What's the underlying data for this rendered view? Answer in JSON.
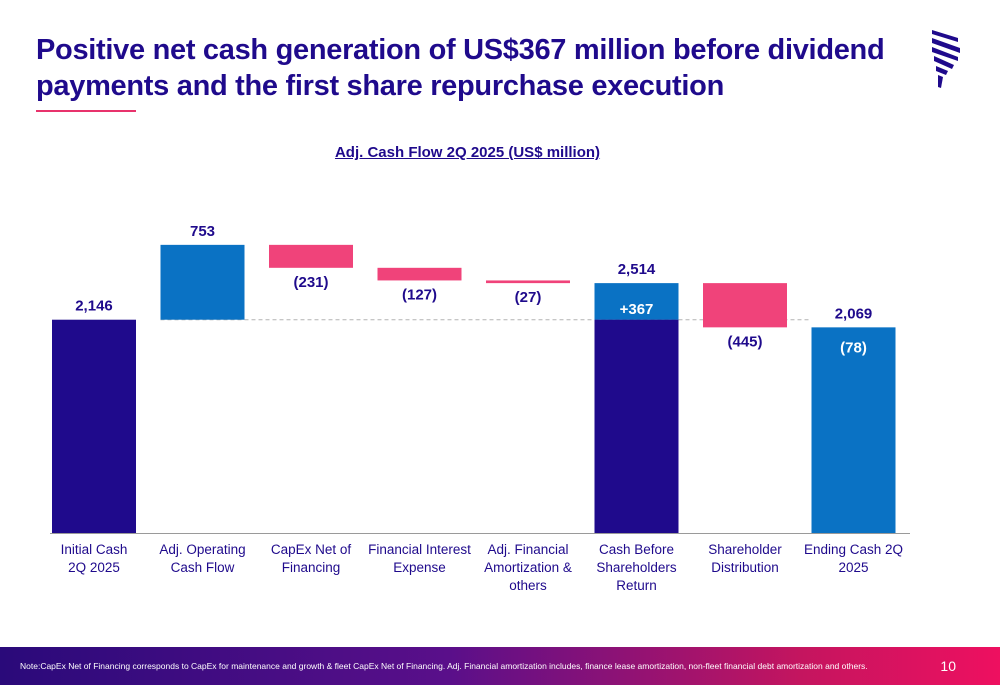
{
  "header": {
    "title": "Positive net cash generation of US$367 million before dividend payments and the first share repurchase execution"
  },
  "logo": {
    "icon": "brand-chevron-logo",
    "color": "#1f0a8c"
  },
  "chart_data": {
    "type": "waterfall",
    "title": "Adj. Cash Flow 2Q 2025 (US$ million)",
    "ylim": [
      0,
      3300
    ],
    "grid": false,
    "colors": {
      "total": "#1f0a8c",
      "increase": "#0a72c4",
      "decrease": "#f0437a"
    },
    "bars": [
      {
        "category": "Initial Cash 2Q 2025",
        "kind": "total",
        "value": 2146,
        "label": "2,146"
      },
      {
        "category": "Adj. Operating Cash Flow",
        "kind": "increase",
        "value": 753,
        "label": "753"
      },
      {
        "category": "CapEx Net of Financing",
        "kind": "decrease",
        "value": -231,
        "label": "(231)"
      },
      {
        "category": "Financial Interest Expense",
        "kind": "decrease",
        "value": -127,
        "label": "(127)"
      },
      {
        "category": "Adj. Financial Amortization & others",
        "kind": "decrease",
        "value": -27,
        "label": "(27)"
      },
      {
        "category": "Cash Before Shareholders Return",
        "kind": "total_with_change",
        "value": 2514,
        "label": "2,514",
        "change": 367,
        "change_label": "+367"
      },
      {
        "category": "Shareholder Distribution",
        "kind": "decrease",
        "value": -445,
        "label": "(445)"
      },
      {
        "category": "Ending Cash 2Q 2025",
        "kind": "total_change",
        "value": 2069,
        "label": "2,069",
        "change": -78,
        "change_label": "(78)"
      }
    ],
    "x_tick_lines": [
      [
        "Initial Cash",
        "2Q 2025"
      ],
      [
        "Adj. Operating",
        "Cash Flow"
      ],
      [
        "CapEx Net of",
        "Financing"
      ],
      [
        "Financial Interest",
        "Expense"
      ],
      [
        "Adj. Financial",
        "Amortization &",
        "others"
      ],
      [
        "Cash Before",
        "Shareholders",
        "Return"
      ],
      [
        "Shareholder",
        "Distribution"
      ],
      [
        "Ending Cash 2Q",
        "2025"
      ]
    ],
    "reference_line": {
      "value": 2146,
      "style": "dashed"
    }
  },
  "footer": {
    "note": "Note:CapEx Net of Financing corresponds to CapEx for maintenance and growth & fleet CapEx Net of Financing. Adj. Financial amortization includes, finance lease amortization, non-fleet financial debt amortization and others.",
    "page_number": "10"
  }
}
